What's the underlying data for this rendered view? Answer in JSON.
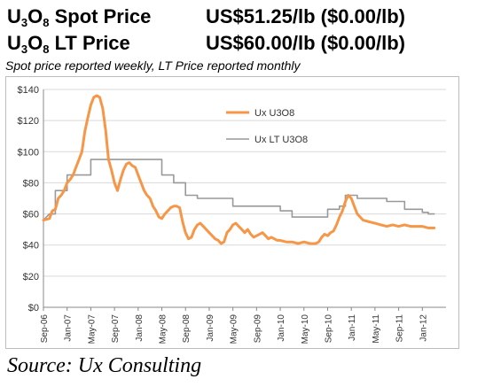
{
  "headlines": {
    "spot": {
      "u": "U",
      "o": "O",
      "sub3": "3",
      "sub8": "8",
      "label_rest": " Spot Price",
      "value": "US$51.25/lb ($0.00/lb)"
    },
    "lt": {
      "u": "U",
      "o": "O",
      "sub3": "3",
      "sub8": "8",
      "label_rest": " LT Price",
      "value": "US$60.00/lb ($0.00/lb)"
    }
  },
  "subtitle": "Spot price reported weekly, LT Price reported monthly",
  "source": "Source: Ux Consulting",
  "chart_data": {
    "type": "line",
    "title": "",
    "xlabel": "",
    "ylabel": "",
    "x_ticks": [
      "Sep-06",
      "Jan-07",
      "May-07",
      "Sep-07",
      "Jan-08",
      "May-08",
      "Sep-08",
      "Jan-09",
      "May-09",
      "Sep-09",
      "Jan-10",
      "May-10",
      "Sep-10",
      "Jan-11",
      "May-11",
      "Sep-11",
      "Jan-12"
    ],
    "y_ticks": [
      "$0",
      "$20",
      "$40",
      "$60",
      "$80",
      "$100",
      "$120",
      "$140"
    ],
    "ylim": [
      0,
      140
    ],
    "xlim": [
      0,
      68
    ],
    "grid": "horizontal",
    "legend_position": "top-center",
    "series": [
      {
        "name": "Ux U3O8",
        "color": "#f79646",
        "points": [
          [
            0,
            56
          ],
          [
            1,
            57
          ],
          [
            1.5,
            62
          ],
          [
            2,
            63
          ],
          [
            2.5,
            70
          ],
          [
            3,
            72
          ],
          [
            3.5,
            75
          ],
          [
            4,
            80
          ],
          [
            4.5,
            82
          ],
          [
            5,
            85
          ],
          [
            5.5,
            90
          ],
          [
            6,
            95
          ],
          [
            6.5,
            100
          ],
          [
            7,
            113
          ],
          [
            7.5,
            122
          ],
          [
            8,
            130
          ],
          [
            8.5,
            135
          ],
          [
            9,
            136
          ],
          [
            9.5,
            135
          ],
          [
            10,
            128
          ],
          [
            10.5,
            114
          ],
          [
            11,
            95
          ],
          [
            11.5,
            88
          ],
          [
            12,
            80
          ],
          [
            12.5,
            75
          ],
          [
            13,
            82
          ],
          [
            13.5,
            88
          ],
          [
            14,
            92
          ],
          [
            14.5,
            93
          ],
          [
            15,
            91
          ],
          [
            15.5,
            90
          ],
          [
            16,
            85
          ],
          [
            16.5,
            80
          ],
          [
            17,
            75
          ],
          [
            17.5,
            72
          ],
          [
            18,
            70
          ],
          [
            18.5,
            65
          ],
          [
            19,
            62
          ],
          [
            19.5,
            58
          ],
          [
            20,
            57
          ],
          [
            20.5,
            60
          ],
          [
            21,
            62
          ],
          [
            21.5,
            64
          ],
          [
            22,
            65
          ],
          [
            22.5,
            65
          ],
          [
            23,
            64
          ],
          [
            23.5,
            55
          ],
          [
            24,
            48
          ],
          [
            24.5,
            44
          ],
          [
            25,
            45
          ],
          [
            25.5,
            50
          ],
          [
            26,
            53
          ],
          [
            26.5,
            54
          ],
          [
            27,
            52
          ],
          [
            27.5,
            50
          ],
          [
            28,
            48
          ],
          [
            28.5,
            46
          ],
          [
            29,
            44
          ],
          [
            29.5,
            43
          ],
          [
            30,
            41
          ],
          [
            30.5,
            42
          ],
          [
            31,
            48
          ],
          [
            31.5,
            50
          ],
          [
            32,
            53
          ],
          [
            32.5,
            54
          ],
          [
            33,
            52
          ],
          [
            33.5,
            50
          ],
          [
            34,
            48
          ],
          [
            34.5,
            50
          ],
          [
            35,
            47
          ],
          [
            35.5,
            45
          ],
          [
            36,
            46
          ],
          [
            36.5,
            47
          ],
          [
            37,
            48
          ],
          [
            37.5,
            46
          ],
          [
            38,
            44
          ],
          [
            38.5,
            45
          ],
          [
            39,
            44
          ],
          [
            39.5,
            43
          ],
          [
            40,
            43
          ],
          [
            41,
            42
          ],
          [
            42,
            42
          ],
          [
            43,
            41
          ],
          [
            44,
            42
          ],
          [
            45,
            41
          ],
          [
            46,
            41
          ],
          [
            46.5,
            42
          ],
          [
            47,
            45
          ],
          [
            47.5,
            47
          ],
          [
            48,
            46
          ],
          [
            48.5,
            48
          ],
          [
            49,
            49
          ],
          [
            49.5,
            53
          ],
          [
            50,
            58
          ],
          [
            50.5,
            62
          ],
          [
            51,
            68
          ],
          [
            51.5,
            72
          ],
          [
            52,
            70
          ],
          [
            52.5,
            65
          ],
          [
            53,
            60
          ],
          [
            53.5,
            58
          ],
          [
            54,
            56
          ],
          [
            55,
            55
          ],
          [
            56,
            54
          ],
          [
            57,
            53
          ],
          [
            58,
            52
          ],
          [
            59,
            53
          ],
          [
            60,
            52
          ],
          [
            61,
            53
          ],
          [
            62,
            52
          ],
          [
            63,
            52
          ],
          [
            64,
            52
          ],
          [
            65,
            51
          ],
          [
            66,
            51
          ]
        ]
      },
      {
        "name": "Ux LT U3O8",
        "color": "#999999",
        "points": [
          [
            0,
            56
          ],
          [
            1,
            60
          ],
          [
            2,
            60
          ],
          [
            2,
            75
          ],
          [
            4,
            75
          ],
          [
            4,
            85
          ],
          [
            8,
            85
          ],
          [
            8,
            95
          ],
          [
            20,
            95
          ],
          [
            20,
            85
          ],
          [
            22,
            85
          ],
          [
            22,
            80
          ],
          [
            24,
            80
          ],
          [
            24,
            72
          ],
          [
            26,
            72
          ],
          [
            26,
            70
          ],
          [
            32,
            70
          ],
          [
            32,
            65
          ],
          [
            40,
            65
          ],
          [
            40,
            62
          ],
          [
            42,
            62
          ],
          [
            42,
            58
          ],
          [
            48,
            58
          ],
          [
            48,
            63
          ],
          [
            50,
            63
          ],
          [
            50,
            65
          ],
          [
            51,
            65
          ],
          [
            51,
            72
          ],
          [
            53,
            72
          ],
          [
            53,
            70
          ],
          [
            58,
            70
          ],
          [
            58,
            68
          ],
          [
            61,
            68
          ],
          [
            61,
            63
          ],
          [
            64,
            63
          ],
          [
            64,
            61
          ],
          [
            65,
            61
          ],
          [
            65,
            60
          ],
          [
            66,
            60
          ]
        ]
      }
    ]
  }
}
